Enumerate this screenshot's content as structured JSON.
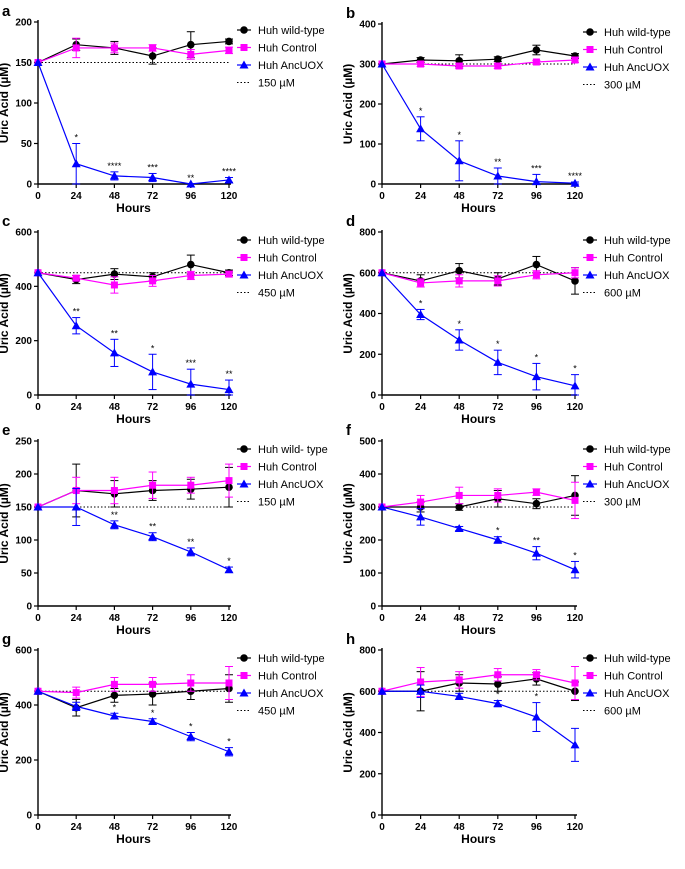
{
  "chart_data": [
    {
      "panel": "a",
      "type": "line",
      "xlabel": "Hours",
      "ylabel": "Uric Acid (µM)",
      "x": [
        0,
        24,
        48,
        72,
        96,
        120
      ],
      "xticks": [
        "0",
        "24",
        "48",
        "72",
        "96",
        "120"
      ],
      "ylim": [
        0,
        200
      ],
      "yticks": [
        "0",
        "50",
        "100",
        "150",
        "200"
      ],
      "series": [
        {
          "name": "Huh wild-type",
          "color": "#000000",
          "marker": "circle",
          "values": [
            150,
            172,
            168,
            158,
            172,
            176
          ],
          "err": [
            0,
            7,
            8,
            10,
            16,
            3
          ]
        },
        {
          "name": "Huh Control",
          "color": "#ff00ff",
          "marker": "square",
          "values": [
            150,
            168,
            168,
            168,
            160,
            165
          ],
          "err": [
            0,
            12,
            6,
            4,
            6,
            4
          ]
        },
        {
          "name": "Huh AncUOX",
          "color": "#0000ff",
          "marker": "triangle",
          "values": [
            150,
            25,
            10,
            8,
            0,
            5
          ],
          "err": [
            0,
            25,
            5,
            5,
            0,
            3
          ]
        }
      ],
      "reference": {
        "name": "150 µM",
        "value": 150
      },
      "annotations": [
        {
          "x": 24,
          "text": "*"
        },
        {
          "x": 48,
          "text": "****"
        },
        {
          "x": 72,
          "text": "***"
        },
        {
          "x": 96,
          "text": "**"
        },
        {
          "x": 120,
          "text": "****"
        }
      ]
    },
    {
      "panel": "b",
      "type": "line",
      "xlabel": "Hours",
      "ylabel": "Uric Acid (µM)",
      "x": [
        0,
        24,
        48,
        72,
        96,
        120
      ],
      "xticks": [
        "0",
        "24",
        "48",
        "72",
        "96",
        "120"
      ],
      "ylim": [
        0,
        400
      ],
      "yticks": [
        "0",
        "100",
        "200",
        "300",
        "400"
      ],
      "series": [
        {
          "name": "Huh wild-type",
          "color": "#000000",
          "marker": "circle",
          "values": [
            300,
            310,
            308,
            312,
            335,
            320
          ],
          "err": [
            0,
            6,
            15,
            6,
            12,
            6
          ]
        },
        {
          "name": "Huh Control",
          "color": "#ff00ff",
          "marker": "square",
          "values": [
            300,
            300,
            295,
            295,
            305,
            310
          ],
          "err": [
            0,
            6,
            6,
            6,
            4,
            6
          ]
        },
        {
          "name": "Huh AncUOX",
          "color": "#0000ff",
          "marker": "triangle",
          "values": [
            300,
            138,
            58,
            20,
            6,
            2
          ],
          "err": [
            0,
            30,
            50,
            20,
            18,
            3
          ]
        }
      ],
      "reference": {
        "name": "300 µM",
        "value": 300
      },
      "annotations": [
        {
          "x": 24,
          "text": "*"
        },
        {
          "x": 48,
          "text": "*"
        },
        {
          "x": 72,
          "text": "**"
        },
        {
          "x": 96,
          "text": "***"
        },
        {
          "x": 120,
          "text": "****"
        }
      ]
    },
    {
      "panel": "c",
      "type": "line",
      "xlabel": "Hours",
      "ylabel": "Uric Acid (µM)",
      "x": [
        0,
        24,
        48,
        72,
        96,
        120
      ],
      "xticks": [
        "0",
        "24",
        "48",
        "72",
        "96",
        "120"
      ],
      "ylim": [
        0,
        600
      ],
      "yticks": [
        "0",
        "200",
        "400",
        "600"
      ],
      "series": [
        {
          "name": "Huh wild-type",
          "color": "#000000",
          "marker": "circle",
          "values": [
            450,
            425,
            445,
            435,
            480,
            450
          ],
          "err": [
            0,
            15,
            20,
            15,
            35,
            10
          ]
        },
        {
          "name": "Huh Control",
          "color": "#ff00ff",
          "marker": "square",
          "values": [
            450,
            430,
            405,
            420,
            440,
            445
          ],
          "err": [
            0,
            10,
            30,
            20,
            15,
            10
          ]
        },
        {
          "name": "Huh AncUOX",
          "color": "#0000ff",
          "marker": "triangle",
          "values": [
            450,
            255,
            155,
            85,
            40,
            20
          ],
          "err": [
            0,
            30,
            50,
            65,
            55,
            35
          ]
        }
      ],
      "reference": {
        "name": "450 µM",
        "value": 450
      },
      "annotations": [
        {
          "x": 24,
          "text": "**"
        },
        {
          "x": 48,
          "text": "**"
        },
        {
          "x": 72,
          "text": "*"
        },
        {
          "x": 96,
          "text": "***"
        },
        {
          "x": 120,
          "text": "**"
        }
      ]
    },
    {
      "panel": "d",
      "type": "line",
      "xlabel": "Hours",
      "ylabel": "Uric Acid (µM)",
      "x": [
        0,
        24,
        48,
        72,
        96,
        120
      ],
      "xticks": [
        "0",
        "24",
        "48",
        "72",
        "96",
        "120"
      ],
      "ylim": [
        0,
        800
      ],
      "yticks": [
        "0",
        "200",
        "400",
        "600",
        "800"
      ],
      "series": [
        {
          "name": "Huh wild-type",
          "color": "#000000",
          "marker": "circle",
          "values": [
            600,
            560,
            610,
            570,
            640,
            560
          ],
          "err": [
            0,
            30,
            35,
            30,
            40,
            65
          ]
        },
        {
          "name": "Huh Control",
          "color": "#ff00ff",
          "marker": "square",
          "values": [
            600,
            550,
            560,
            560,
            590,
            600
          ],
          "err": [
            0,
            20,
            30,
            25,
            20,
            25
          ]
        },
        {
          "name": "Huh AncUOX",
          "color": "#0000ff",
          "marker": "triangle",
          "values": [
            600,
            395,
            270,
            160,
            90,
            45
          ],
          "err": [
            0,
            25,
            50,
            60,
            65,
            55
          ]
        }
      ],
      "reference": {
        "name": "600 µM",
        "value": 600
      },
      "annotations": [
        {
          "x": 24,
          "text": "*"
        },
        {
          "x": 48,
          "text": "*"
        },
        {
          "x": 72,
          "text": "*"
        },
        {
          "x": 96,
          "text": "*"
        },
        {
          "x": 120,
          "text": "*"
        }
      ]
    },
    {
      "panel": "e",
      "type": "line",
      "xlabel": "Hours",
      "ylabel": "Uric Acid (µM)",
      "x": [
        0,
        24,
        48,
        72,
        96,
        120
      ],
      "xticks": [
        "0",
        "24",
        "48",
        "72",
        "96",
        "120"
      ],
      "ylim": [
        0,
        250
      ],
      "yticks": [
        "0",
        "50",
        "100",
        "150",
        "200",
        "250"
      ],
      "series": [
        {
          "name": "Huh wild- type",
          "color": "#000000",
          "marker": "circle",
          "values": [
            150,
            175,
            170,
            175,
            177,
            180
          ],
          "err": [
            0,
            40,
            20,
            15,
            15,
            30
          ]
        },
        {
          "name": "Huh Control",
          "color": "#ff00ff",
          "marker": "square",
          "values": [
            150,
            175,
            175,
            183,
            183,
            190
          ],
          "err": [
            0,
            20,
            20,
            20,
            12,
            25
          ]
        },
        {
          "name": "Huh AncUOX",
          "color": "#0000ff",
          "marker": "triangle",
          "values": [
            150,
            150,
            123,
            105,
            82,
            55
          ],
          "err": [
            0,
            28,
            6,
            6,
            6,
            4
          ]
        }
      ],
      "reference": {
        "name": "150 µM",
        "value": 150
      },
      "annotations": [
        {
          "x": 48,
          "text": "**"
        },
        {
          "x": 72,
          "text": "**"
        },
        {
          "x": 96,
          "text": "**"
        },
        {
          "x": 120,
          "text": "*"
        }
      ]
    },
    {
      "panel": "f",
      "type": "line",
      "xlabel": "Hours",
      "ylabel": "Uric Acid (µM)",
      "x": [
        0,
        24,
        48,
        72,
        96,
        120
      ],
      "xticks": [
        "0",
        "24",
        "48",
        "72",
        "96",
        "120"
      ],
      "ylim": [
        0,
        500
      ],
      "yticks": [
        "0",
        "100",
        "200",
        "300",
        "400",
        "500"
      ],
      "series": [
        {
          "name": "Huh wild-type",
          "color": "#000000",
          "marker": "circle",
          "values": [
            300,
            300,
            300,
            325,
            310,
            335
          ],
          "err": [
            0,
            15,
            10,
            25,
            15,
            60
          ]
        },
        {
          "name": "Huh Control",
          "color": "#ff00ff",
          "marker": "square",
          "values": [
            300,
            315,
            335,
            335,
            345,
            320
          ],
          "err": [
            0,
            20,
            25,
            20,
            10,
            55
          ]
        },
        {
          "name": "Huh AncUOX",
          "color": "#0000ff",
          "marker": "triangle",
          "values": [
            300,
            270,
            235,
            200,
            160,
            110
          ],
          "err": [
            0,
            25,
            6,
            10,
            20,
            25
          ]
        }
      ],
      "reference": {
        "name": "300 µM",
        "value": 300
      },
      "annotations": [
        {
          "x": 72,
          "text": "*"
        },
        {
          "x": 96,
          "text": "**"
        },
        {
          "x": 120,
          "text": "*"
        }
      ]
    },
    {
      "panel": "g",
      "type": "line",
      "xlabel": "Hours",
      "ylabel": "Uric Acid (µM)",
      "x": [
        0,
        24,
        48,
        72,
        96,
        120
      ],
      "xticks": [
        "0",
        "24",
        "48",
        "72",
        "96",
        "120"
      ],
      "ylim": [
        0,
        600
      ],
      "yticks": [
        "0",
        "200",
        "400",
        "600"
      ],
      "series": [
        {
          "name": "Huh wild-type",
          "color": "#000000",
          "marker": "circle",
          "values": [
            450,
            390,
            435,
            440,
            450,
            460
          ],
          "err": [
            0,
            30,
            25,
            40,
            30,
            50
          ]
        },
        {
          "name": "Huh Control",
          "color": "#ff00ff",
          "marker": "square",
          "values": [
            450,
            445,
            475,
            475,
            480,
            480
          ],
          "err": [
            0,
            20,
            25,
            25,
            30,
            60
          ]
        },
        {
          "name": "Huh AncUOX",
          "color": "#0000ff",
          "marker": "triangle",
          "values": [
            450,
            395,
            360,
            340,
            285,
            230
          ],
          "err": [
            0,
            15,
            10,
            10,
            15,
            15
          ]
        }
      ],
      "reference": {
        "name": "450 µM",
        "value": 450
      },
      "annotations": [
        {
          "x": 48,
          "text": "*"
        },
        {
          "x": 72,
          "text": "*"
        },
        {
          "x": 96,
          "text": "*"
        },
        {
          "x": 120,
          "text": "*"
        }
      ]
    },
    {
      "panel": "h",
      "type": "line",
      "xlabel": "Hours",
      "ylabel": "Uric Acid (µM)",
      "x": [
        0,
        24,
        48,
        72,
        96,
        120
      ],
      "xticks": [
        "0",
        "24",
        "48",
        "72",
        "96",
        "120"
      ],
      "ylim": [
        0,
        800
      ],
      "yticks": [
        "0",
        "200",
        "400",
        "600",
        "800"
      ],
      "series": [
        {
          "name": "Huh wild-type",
          "color": "#000000",
          "marker": "circle",
          "values": [
            600,
            600,
            640,
            635,
            660,
            600
          ],
          "err": [
            0,
            95,
            40,
            35,
            30,
            45
          ]
        },
        {
          "name": "Huh Control",
          "color": "#ff00ff",
          "marker": "square",
          "values": [
            600,
            645,
            655,
            680,
            680,
            640
          ],
          "err": [
            0,
            70,
            40,
            30,
            25,
            80
          ]
        },
        {
          "name": "Huh AncUOX",
          "color": "#0000ff",
          "marker": "triangle",
          "values": [
            600,
            600,
            575,
            540,
            475,
            340
          ],
          "err": [
            0,
            30,
            15,
            15,
            70,
            80
          ]
        }
      ],
      "reference": {
        "name": "600 µM",
        "value": 600
      },
      "annotations": [
        {
          "x": 72,
          "text": "*"
        },
        {
          "x": 96,
          "text": "*"
        }
      ]
    }
  ]
}
